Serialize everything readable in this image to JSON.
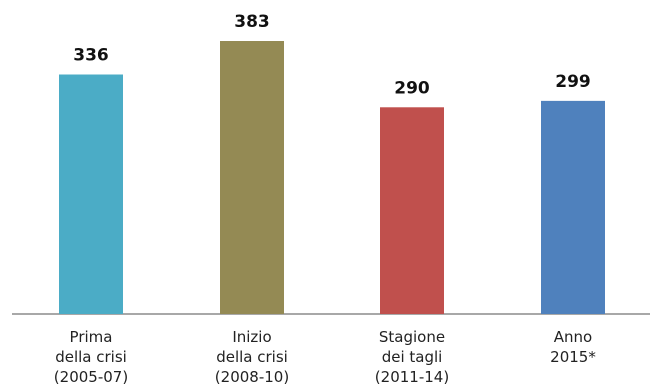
{
  "chart_data": {
    "type": "bar",
    "categories": [
      [
        "Prima",
        "della crisi",
        "(2005-07)"
      ],
      [
        "Inizio",
        "della crisi",
        "(2008-10)"
      ],
      [
        "Stagione",
        "dei tagli",
        "(2011-14)"
      ],
      [
        "Anno",
        "2015*"
      ]
    ],
    "values": [
      336,
      383,
      290,
      299
    ],
    "colors": [
      "#4bacc6",
      "#948a54",
      "#c0504d",
      "#4f81bd"
    ],
    "data_labels": [
      "336",
      "383",
      "290",
      "299"
    ],
    "ylim": [
      0,
      383
    ],
    "grid": false,
    "legend": "none"
  }
}
